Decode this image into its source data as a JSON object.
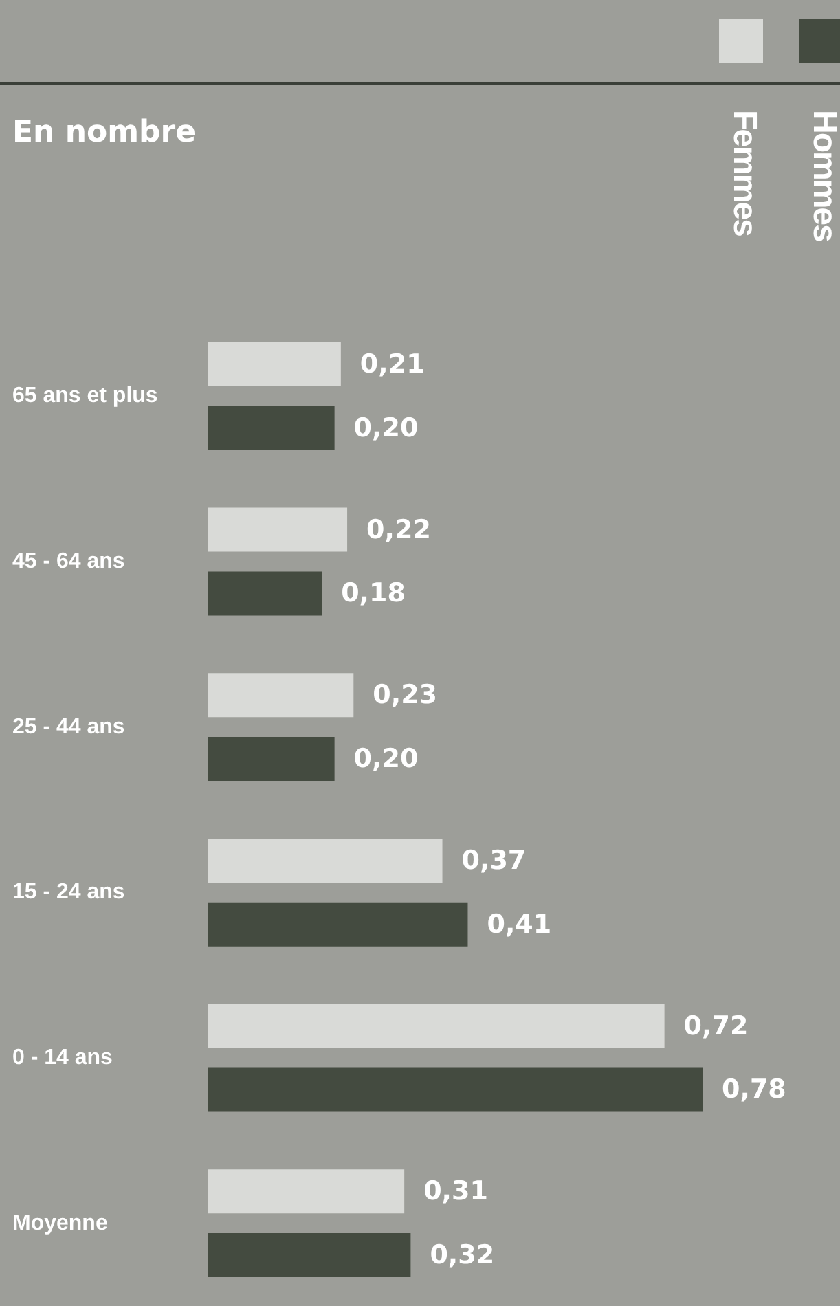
{
  "chart_data": {
    "type": "bar",
    "orientation": "horizontal",
    "title": "En nombre",
    "categories": [
      "65 ans et plus",
      "45 - 64 ans",
      "25 - 44 ans",
      "15 - 24 ans",
      "0 - 14 ans",
      "Moyenne"
    ],
    "series": [
      {
        "name": "Femmes",
        "color": "#d9dad7",
        "values": [
          0.21,
          0.22,
          0.23,
          0.37,
          0.72,
          0.31
        ],
        "value_labels": [
          "0,21",
          "0,22",
          "0,23",
          "0,37",
          "0,72",
          "0,31"
        ]
      },
      {
        "name": "Hommes",
        "color": "#444b40",
        "values": [
          0.2,
          0.18,
          0.2,
          0.41,
          0.78,
          0.32
        ],
        "value_labels": [
          "0,20",
          "0,18",
          "0,20",
          "0,41",
          "0,78",
          "0,32"
        ]
      }
    ],
    "tick_labels": "y",
    "legend": "top right"
  }
}
